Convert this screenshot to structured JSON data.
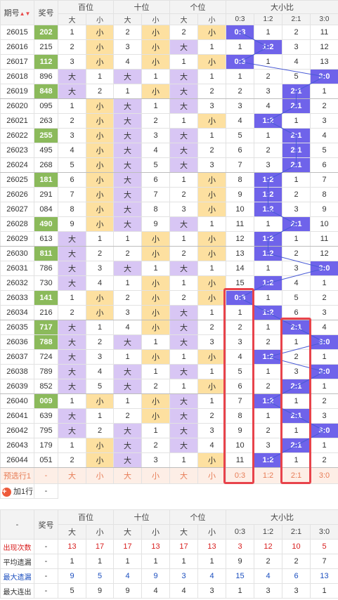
{
  "header": {
    "period": "期号",
    "award": "奖号",
    "groups": [
      "百位",
      "十位",
      "个位",
      "大小比"
    ],
    "sub": [
      "大",
      "小",
      "大",
      "小",
      "大",
      "小",
      "0:3",
      "1:2",
      "2:1",
      "3:0"
    ]
  },
  "rows": [
    {
      "p": "26015",
      "n": "202",
      "g": true,
      "cells": [
        "1",
        "小",
        "2",
        "小",
        "2",
        "小"
      ],
      "da": [
        false,
        true,
        false,
        true,
        false,
        true
      ],
      "r": "0:3",
      "miss": [
        "",
        "1",
        "2",
        "11"
      ]
    },
    {
      "p": "26016",
      "n": "215",
      "g": false,
      "cells": [
        "2",
        "小",
        "3",
        "小",
        "大",
        "1"
      ],
      "da": [
        false,
        true,
        false,
        true,
        true,
        false
      ],
      "r": "1:2",
      "miss": [
        "1",
        "",
        "3",
        "12"
      ]
    },
    {
      "p": "26017",
      "n": "112",
      "g": true,
      "cells": [
        "3",
        "小",
        "4",
        "小",
        "1",
        "小"
      ],
      "da": [
        false,
        true,
        false,
        true,
        false,
        true
      ],
      "r": "0:3",
      "miss": [
        "",
        "1",
        "4",
        "13"
      ]
    },
    {
      "p": "26018",
      "n": "896",
      "g": false,
      "cells": [
        "大",
        "1",
        "大",
        "1",
        "大",
        "1"
      ],
      "da": [
        true,
        false,
        true,
        false,
        true,
        false
      ],
      "r": "3:0",
      "miss": [
        "1",
        "2",
        "5",
        ""
      ]
    },
    {
      "p": "26019",
      "n": "848",
      "g": true,
      "cells": [
        "大",
        "2",
        "1",
        "小",
        "大",
        "2"
      ],
      "da": [
        true,
        false,
        false,
        true,
        true,
        false
      ],
      "r": "2:1",
      "miss": [
        "2",
        "3",
        "",
        "1"
      ]
    },
    {
      "p": "26020",
      "n": "095",
      "g": false,
      "cells": [
        "1",
        "小",
        "大",
        "1",
        "大",
        "3"
      ],
      "da": [
        false,
        true,
        true,
        false,
        true,
        false
      ],
      "r": "2:1",
      "miss": [
        "3",
        "4",
        "",
        "2"
      ]
    },
    {
      "p": "26021",
      "n": "263",
      "g": false,
      "cells": [
        "2",
        "小",
        "大",
        "2",
        "1",
        "小"
      ],
      "da": [
        false,
        true,
        true,
        false,
        false,
        true
      ],
      "r": "1:2",
      "miss": [
        "4",
        "",
        "1",
        "3"
      ]
    },
    {
      "p": "26022",
      "n": "255",
      "g": true,
      "cells": [
        "3",
        "小",
        "大",
        "3",
        "大",
        "1"
      ],
      "da": [
        false,
        true,
        true,
        false,
        true,
        false
      ],
      "r": "2:1",
      "miss": [
        "5",
        "1",
        "",
        "4"
      ]
    },
    {
      "p": "26023",
      "n": "495",
      "g": false,
      "cells": [
        "4",
        "小",
        "大",
        "4",
        "大",
        "2"
      ],
      "da": [
        false,
        true,
        true,
        false,
        true,
        false
      ],
      "r": "2:1",
      "miss": [
        "6",
        "2",
        "",
        "5"
      ]
    },
    {
      "p": "26024",
      "n": "268",
      "g": false,
      "cells": [
        "5",
        "小",
        "大",
        "5",
        "大",
        "3"
      ],
      "da": [
        false,
        true,
        true,
        false,
        true,
        false
      ],
      "r": "2:1",
      "miss": [
        "7",
        "3",
        "",
        "6"
      ]
    },
    {
      "p": "26025",
      "n": "181",
      "g": true,
      "cells": [
        "6",
        "小",
        "大",
        "6",
        "1",
        "小"
      ],
      "da": [
        false,
        true,
        true,
        false,
        false,
        true
      ],
      "r": "1:2",
      "miss": [
        "8",
        "",
        "1",
        "7"
      ]
    },
    {
      "p": "26026",
      "n": "291",
      "g": false,
      "cells": [
        "7",
        "小",
        "大",
        "7",
        "2",
        "小"
      ],
      "da": [
        false,
        true,
        true,
        false,
        false,
        true
      ],
      "r": "1:2",
      "miss": [
        "9",
        "",
        "2",
        "8"
      ]
    },
    {
      "p": "26027",
      "n": "084",
      "g": false,
      "cells": [
        "8",
        "小",
        "大",
        "8",
        "3",
        "小"
      ],
      "da": [
        false,
        true,
        true,
        false,
        false,
        true
      ],
      "r": "1:2",
      "miss": [
        "10",
        "",
        "3",
        "9"
      ]
    },
    {
      "p": "26028",
      "n": "490",
      "g": true,
      "cells": [
        "9",
        "小",
        "大",
        "9",
        "大",
        "1"
      ],
      "da": [
        false,
        true,
        true,
        false,
        true,
        false
      ],
      "r": "2:1",
      "miss": [
        "11",
        "1",
        "",
        "10"
      ]
    },
    {
      "p": "26029",
      "n": "613",
      "g": false,
      "cells": [
        "大",
        "1",
        "1",
        "小",
        "1",
        "小"
      ],
      "da": [
        true,
        false,
        false,
        true,
        false,
        true
      ],
      "r": "1:2",
      "miss": [
        "12",
        "",
        "1",
        "11"
      ]
    },
    {
      "p": "26030",
      "n": "811",
      "g": true,
      "cells": [
        "大",
        "2",
        "2",
        "小",
        "2",
        "小"
      ],
      "da": [
        true,
        false,
        false,
        true,
        false,
        true
      ],
      "r": "1:2",
      "miss": [
        "13",
        "",
        "2",
        "12"
      ]
    },
    {
      "p": "26031",
      "n": "786",
      "g": false,
      "cells": [
        "大",
        "3",
        "大",
        "1",
        "大",
        "1"
      ],
      "da": [
        true,
        false,
        true,
        false,
        true,
        false
      ],
      "r": "3:0",
      "miss": [
        "14",
        "1",
        "3",
        ""
      ]
    },
    {
      "p": "26032",
      "n": "730",
      "g": false,
      "cells": [
        "大",
        "4",
        "1",
        "小",
        "1",
        "小"
      ],
      "da": [
        true,
        false,
        false,
        true,
        false,
        true
      ],
      "r": "1:2",
      "miss": [
        "15",
        "",
        "4",
        "1"
      ]
    },
    {
      "p": "26033",
      "n": "141",
      "g": true,
      "cells": [
        "1",
        "小",
        "2",
        "小",
        "2",
        "小"
      ],
      "da": [
        false,
        true,
        false,
        true,
        false,
        true
      ],
      "r": "0:3",
      "miss": [
        "",
        "1",
        "5",
        "2"
      ]
    },
    {
      "p": "26034",
      "n": "216",
      "g": false,
      "cells": [
        "2",
        "小",
        "3",
        "小",
        "大",
        "1"
      ],
      "da": [
        false,
        true,
        false,
        true,
        true,
        false
      ],
      "r": "1:2",
      "miss": [
        "1",
        "",
        "6",
        "3"
      ]
    },
    {
      "p": "26035",
      "n": "717",
      "g": true,
      "cells": [
        "大",
        "1",
        "4",
        "小",
        "大",
        "2"
      ],
      "da": [
        true,
        false,
        false,
        true,
        true,
        false
      ],
      "r": "2:1",
      "miss": [
        "2",
        "1",
        "",
        "4"
      ]
    },
    {
      "p": "26036",
      "n": "788",
      "g": true,
      "cells": [
        "大",
        "2",
        "大",
        "1",
        "大",
        "3"
      ],
      "da": [
        true,
        false,
        true,
        false,
        true,
        false
      ],
      "r": "3:0",
      "miss": [
        "3",
        "2",
        "1",
        ""
      ]
    },
    {
      "p": "26037",
      "n": "724",
      "g": false,
      "cells": [
        "大",
        "3",
        "1",
        "小",
        "1",
        "小"
      ],
      "da": [
        true,
        false,
        false,
        true,
        false,
        true
      ],
      "r": "1:2",
      "miss": [
        "4",
        "",
        "2",
        "1"
      ]
    },
    {
      "p": "26038",
      "n": "789",
      "g": false,
      "cells": [
        "大",
        "4",
        "大",
        "1",
        "大",
        "1"
      ],
      "da": [
        true,
        false,
        true,
        false,
        true,
        false
      ],
      "r": "3:0",
      "miss": [
        "5",
        "1",
        "3",
        ""
      ]
    },
    {
      "p": "26039",
      "n": "852",
      "g": false,
      "cells": [
        "大",
        "5",
        "大",
        "2",
        "1",
        "小"
      ],
      "da": [
        true,
        false,
        true,
        false,
        false,
        true
      ],
      "r": "2:1",
      "miss": [
        "6",
        "2",
        "",
        "1"
      ]
    },
    {
      "p": "26040",
      "n": "009",
      "g": true,
      "cells": [
        "1",
        "小",
        "1",
        "小",
        "大",
        "1"
      ],
      "da": [
        false,
        true,
        false,
        true,
        true,
        false
      ],
      "r": "1:2",
      "miss": [
        "7",
        "",
        "1",
        "2"
      ]
    },
    {
      "p": "26041",
      "n": "639",
      "g": false,
      "cells": [
        "大",
        "1",
        "2",
        "小",
        "大",
        "2"
      ],
      "da": [
        true,
        false,
        false,
        true,
        true,
        false
      ],
      "r": "2:1",
      "miss": [
        "8",
        "1",
        "",
        "3"
      ]
    },
    {
      "p": "26042",
      "n": "795",
      "g": false,
      "cells": [
        "大",
        "2",
        "大",
        "1",
        "大",
        "3"
      ],
      "da": [
        true,
        false,
        true,
        false,
        true,
        false
      ],
      "r": "3:0",
      "miss": [
        "9",
        "2",
        "1",
        ""
      ]
    },
    {
      "p": "26043",
      "n": "179",
      "g": false,
      "cells": [
        "1",
        "小",
        "大",
        "2",
        "大",
        "4"
      ],
      "da": [
        false,
        true,
        true,
        false,
        true,
        false
      ],
      "r": "2:1",
      "miss": [
        "10",
        "3",
        "",
        "1"
      ]
    },
    {
      "p": "26044",
      "n": "051",
      "g": false,
      "cells": [
        "2",
        "小",
        "大",
        "3",
        "1",
        "小"
      ],
      "da": [
        false,
        true,
        true,
        false,
        false,
        true
      ],
      "r": "1:2",
      "miss": [
        "11",
        "",
        "1",
        "2"
      ]
    }
  ],
  "preselect": {
    "label": "预选行1",
    "award": "-",
    "cells": [
      "大",
      "小",
      "大",
      "小",
      "大",
      "小",
      "0:3",
      "1:2",
      "2:1",
      "3:0"
    ]
  },
  "add_row": {
    "label": "加1行",
    "award": "-"
  },
  "footer": {
    "dash": "-",
    "award": "奖号",
    "groups": [
      "百位",
      "十位",
      "个位",
      "大小比"
    ],
    "sub": [
      "大",
      "小",
      "大",
      "小",
      "大",
      "小",
      "0:3",
      "1:2",
      "2:1",
      "3:0"
    ],
    "stats": [
      {
        "label": "出现次数",
        "vals": [
          "13",
          "17",
          "17",
          "13",
          "17",
          "13",
          "3",
          "12",
          "10",
          "5"
        ]
      },
      {
        "label": "平均遗漏",
        "vals": [
          "1",
          "1",
          "1",
          "1",
          "1",
          "1",
          "9",
          "2",
          "2",
          "7"
        ]
      },
      {
        "label": "最大遗漏",
        "vals": [
          "9",
          "5",
          "4",
          "9",
          "3",
          "4",
          "15",
          "4",
          "6",
          "13"
        ]
      },
      {
        "label": "最大连出",
        "vals": [
          "5",
          "9",
          "9",
          "4",
          "4",
          "3",
          "1",
          "3",
          "3",
          "1"
        ]
      }
    ]
  },
  "colors": {
    "green": "#8bba5b",
    "purple": "#d8c6f4",
    "yellow": "#fde0a0",
    "ratio": "#6f63ea",
    "highlight": "#e8434b"
  }
}
